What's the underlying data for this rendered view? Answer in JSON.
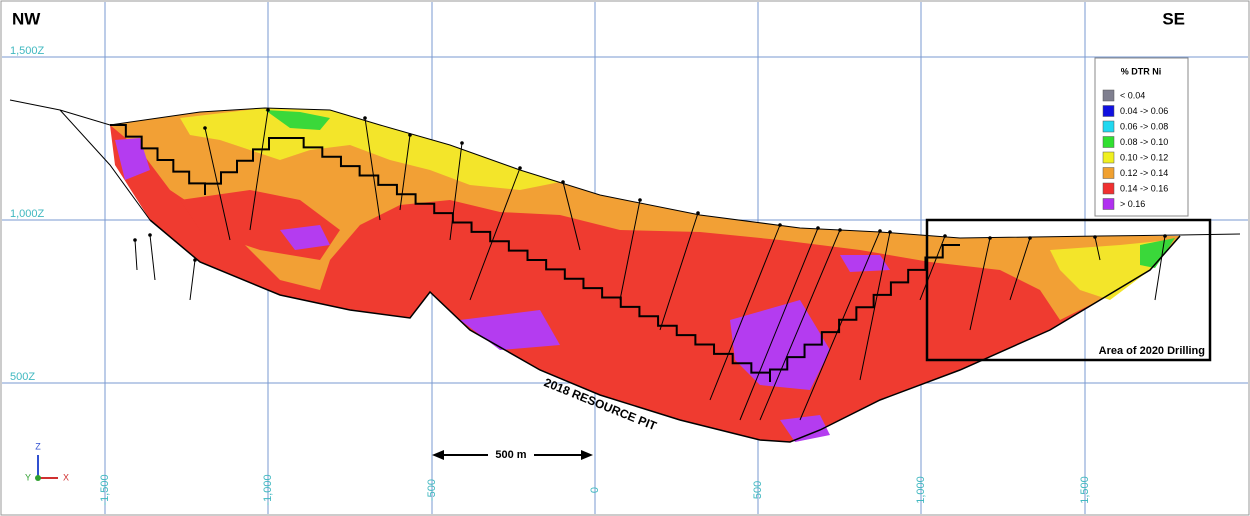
{
  "header": {
    "left": "NW",
    "right": "SE"
  },
  "elevation_labels": [
    "1,500Z",
    "1,000Z",
    "500Z"
  ],
  "easting_labels": [
    "-1,500",
    "-1,000",
    "-500",
    "0",
    "500",
    "1,000",
    "1,500"
  ],
  "legend": {
    "title": "% DTR Ni",
    "items": [
      {
        "label": "< 0.04",
        "color": "#7f7f8f"
      },
      {
        "label": "0.04 -> 0.06",
        "color": "#1010e0"
      },
      {
        "label": "0.06 -> 0.08",
        "color": "#20d8f0"
      },
      {
        "label": "0.08 -> 0.10",
        "color": "#30e030"
      },
      {
        "label": "0.10 -> 0.12",
        "color": "#f0f020"
      },
      {
        "label": "0.12 -> 0.14",
        "color": "#f0a030"
      },
      {
        "label": "0.14 -> 0.16",
        "color": "#f03030"
      },
      {
        "label": "> 0.16",
        "color": "#b030f0"
      }
    ]
  },
  "annotations": {
    "pit": "2018 RESOURCE PIT",
    "drilling_area": "Area of 2020 Drilling",
    "scale_bar": "500 m"
  },
  "axes_triad": {
    "z": "Z",
    "y": "Y",
    "x": "X"
  }
}
